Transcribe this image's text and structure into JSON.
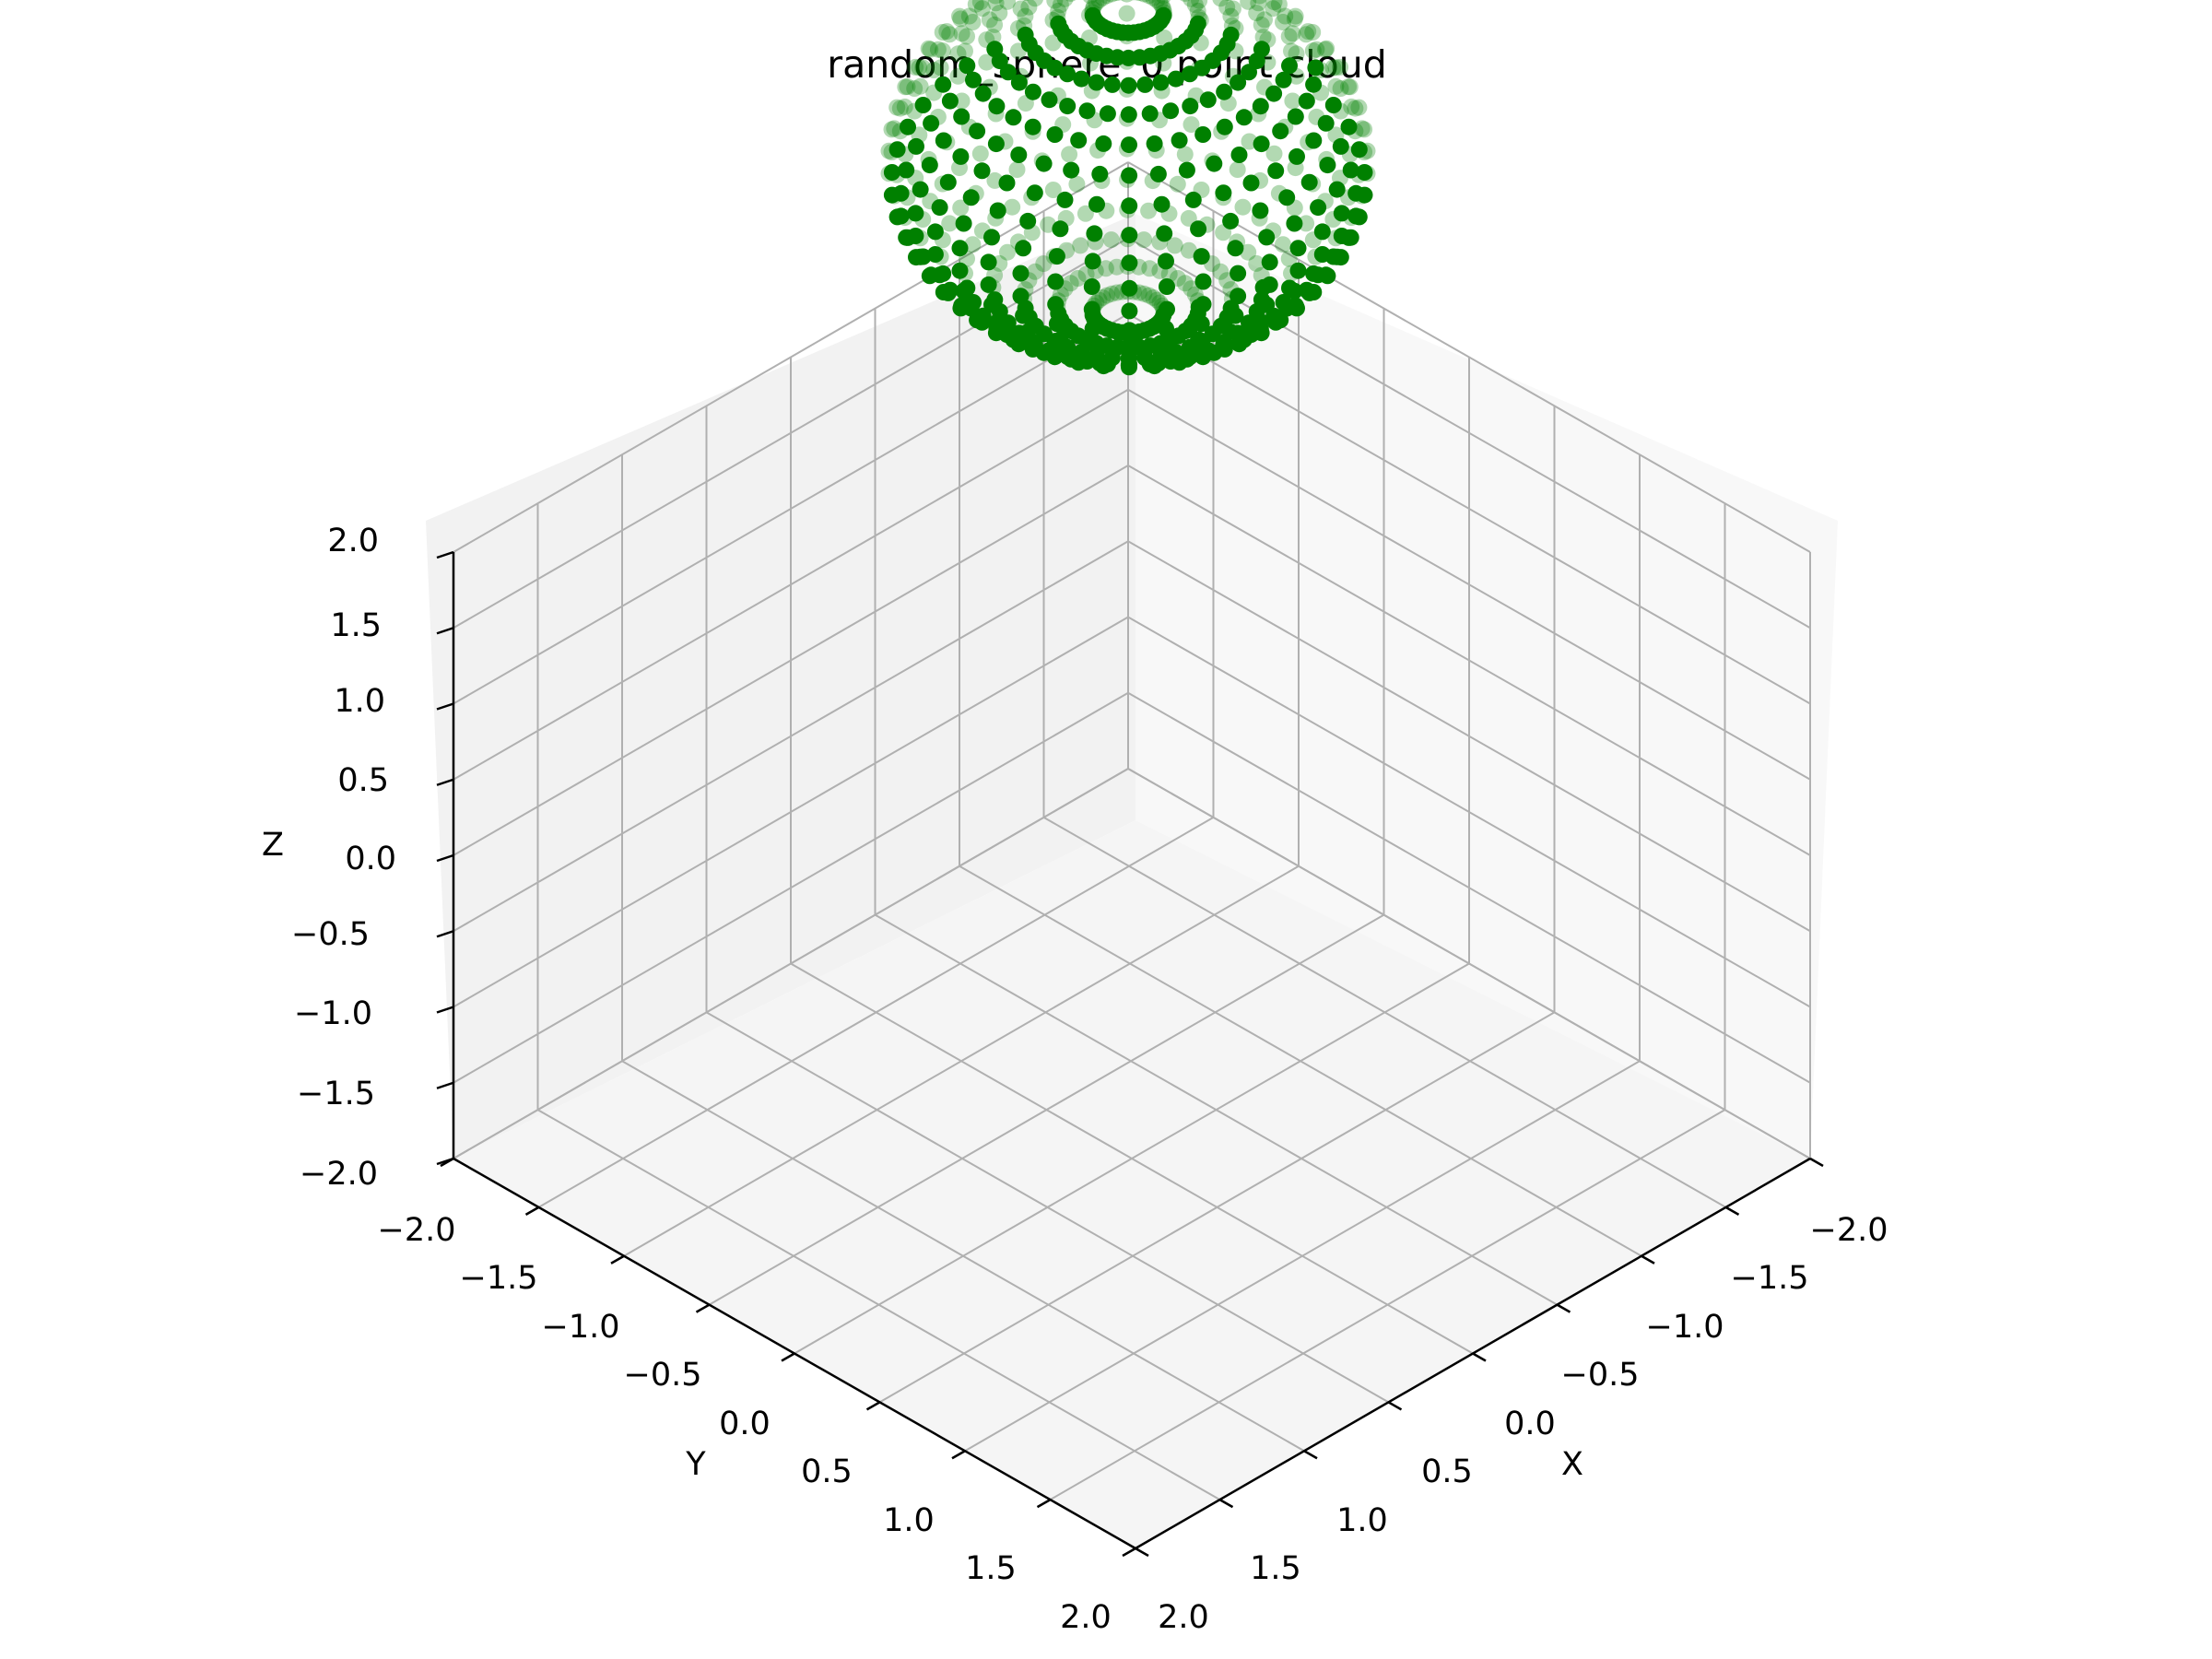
{
  "chart_data": {
    "type": "scatter",
    "projection": "3d",
    "title": "random_sphere_0 point cloud",
    "xlabel": "X",
    "ylabel": "Y",
    "zlabel": "Z",
    "xlim": [
      -2.0,
      2.0
    ],
    "ylim": [
      -2.0,
      2.0
    ],
    "zlim": [
      -2.0,
      2.0
    ],
    "x_ticks": [
      "−2.0",
      "−1.5",
      "−1.0",
      "−0.5",
      "0.0",
      "0.5",
      "1.0",
      "1.5",
      "2.0"
    ],
    "y_ticks": [
      "−2.0",
      "−1.5",
      "−1.0",
      "−0.5",
      "0.0",
      "0.5",
      "1.0",
      "1.5",
      "2.0"
    ],
    "z_ticks": [
      "−2.0",
      "−1.5",
      "−1.0",
      "−0.5",
      "0.0",
      "0.5",
      "1.0",
      "1.5",
      "2.0"
    ],
    "grid": true,
    "view": {
      "elev": 30,
      "azim": -135
    },
    "marker_color": "#008000",
    "sphere": {
      "center": [
        -2.0,
        -2.0,
        2.0
      ],
      "radius": 1.0,
      "latitude_rings": 20,
      "longitude_points": 40
    }
  }
}
